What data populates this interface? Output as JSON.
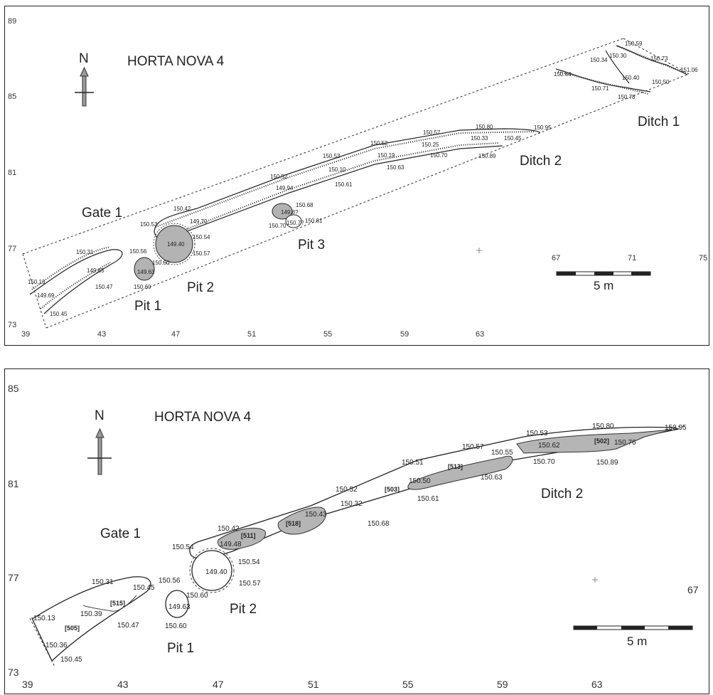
{
  "panels": [
    {
      "title": "HORTA NOVA 4",
      "north": "N",
      "scale_label": "5 m",
      "y_ticks": [
        "89",
        "85",
        "81",
        "77",
        "73"
      ],
      "x_ticks": [
        "39",
        "43",
        "47",
        "51",
        "55",
        "59",
        "63"
      ],
      "x_ticks_right": [
        "67",
        "71",
        "75"
      ],
      "features": [
        "Ditch 1",
        "Ditch 2",
        "Gate 1",
        "Pit 1",
        "Pit 2",
        "Pit 3"
      ],
      "elevations": [
        "150.59",
        "150.30",
        "150.34",
        "150.73",
        "151.06",
        "150.64",
        "150.40",
        "150.71",
        "150.50",
        "150.78",
        "150.80",
        "150.57",
        "150.95",
        "150.33",
        "150.45",
        "150.52",
        "150.25",
        "150.53",
        "150.19",
        "150.70",
        "150.89",
        "150.10",
        "150.63",
        "150.52",
        "150.61",
        "149.94",
        "150.68",
        "150.42",
        "149.8?",
        "150.81",
        "150.53",
        "149.70",
        "150.7?",
        "150.70",
        "150.54",
        "150.57",
        "149.40",
        "150.56",
        "150.31",
        "150.60",
        "149.65",
        "149.63",
        "150.13",
        "150.47",
        "150.60",
        "149.69",
        "150.45"
      ]
    },
    {
      "title": "HORTA NOVA 4",
      "north": "N",
      "scale_label": "5 m",
      "y_ticks": [
        "85",
        "81",
        "77",
        "73"
      ],
      "x_ticks": [
        "39",
        "43",
        "47",
        "51",
        "55",
        "59",
        "63"
      ],
      "x_ticks_right": [
        "67"
      ],
      "features": [
        "Ditch 2",
        "Gate 1",
        "Pit 1",
        "Pit 2"
      ],
      "codes": [
        "[502]",
        "[513]",
        "[503]",
        "[518]",
        "[511]",
        "[515]",
        "[505]"
      ],
      "elevations": [
        "150.80",
        "150.95",
        "150.53",
        "150.57",
        "150.62",
        "150.76",
        "150.55",
        "150.51",
        "150.70",
        "150.89",
        "150.50",
        "150.63",
        "150.52",
        "150.61",
        "150.32",
        "150.43",
        "150.68",
        "150.42",
        "149.48",
        "150.54",
        "150.54",
        "149.40",
        "150.57",
        "150.31",
        "150.45",
        "150.56",
        "150.60",
        "150.39",
        "149.63",
        "150.13",
        "150.47",
        "150.60",
        "150.36",
        "150.45"
      ]
    }
  ]
}
